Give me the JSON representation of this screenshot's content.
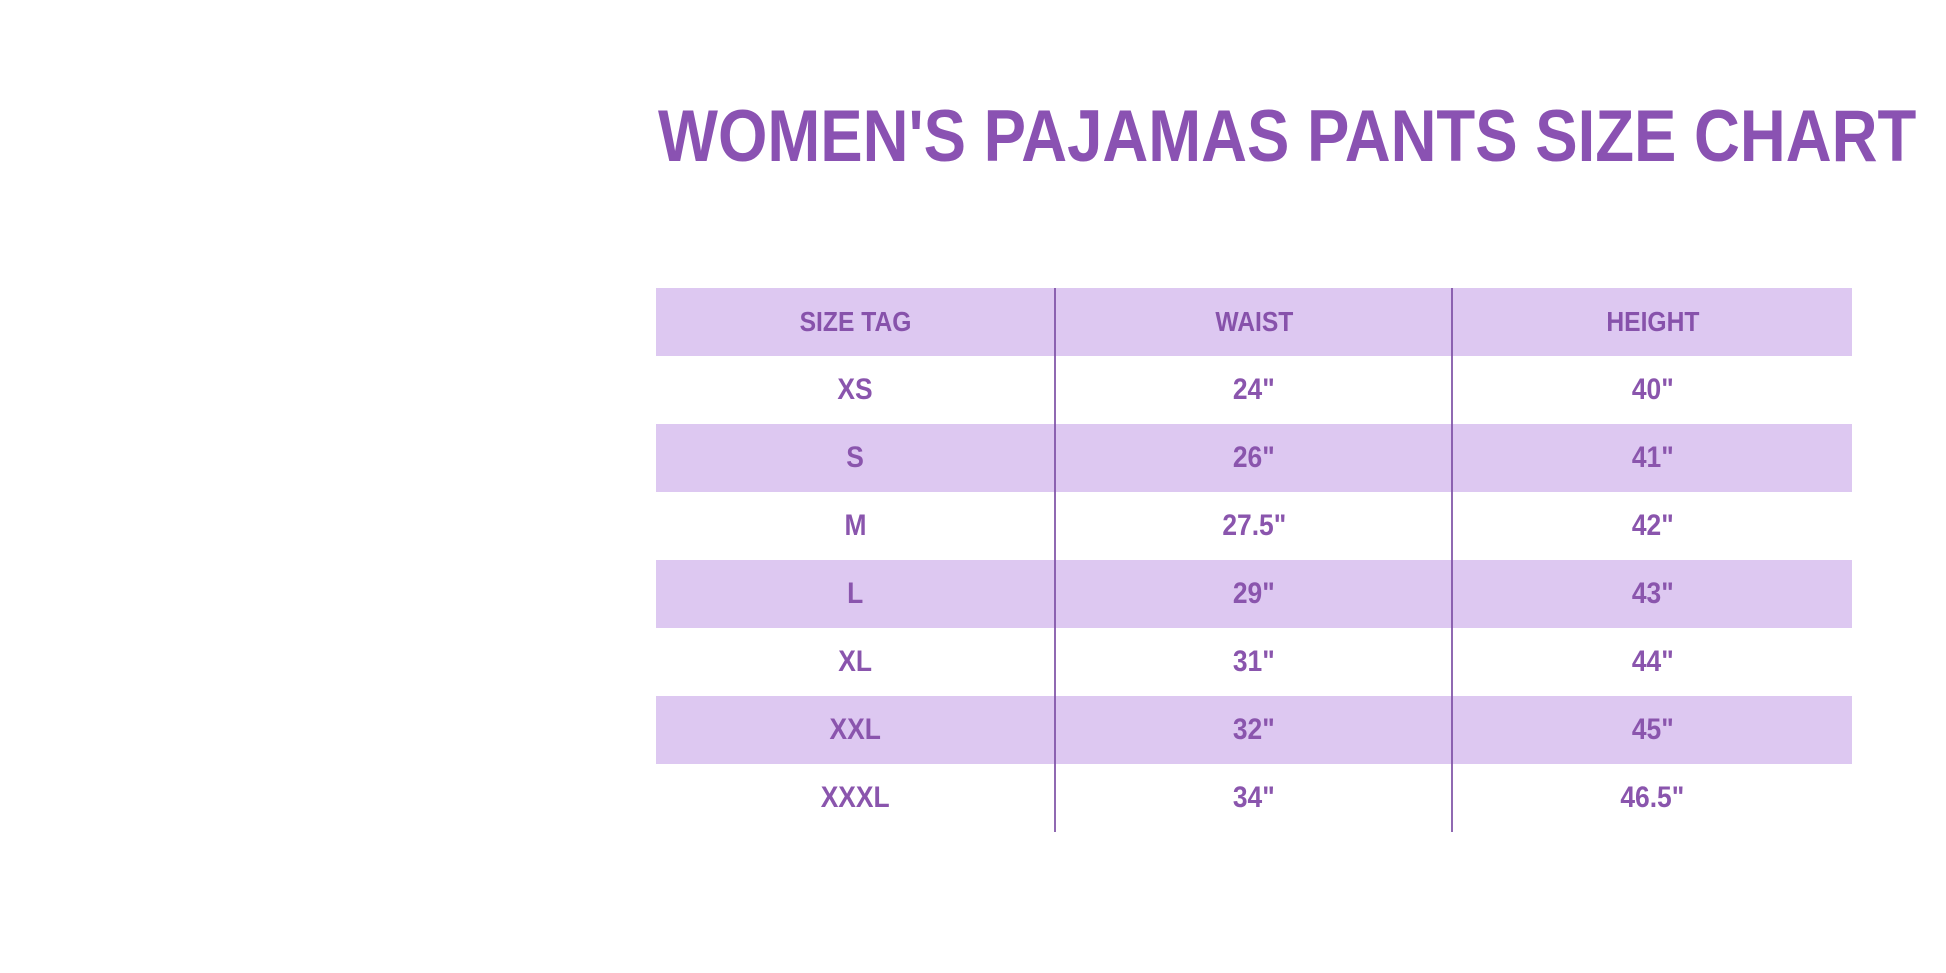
{
  "title": "WOMEN'S PAJAMAS PANTS SIZE CHART",
  "colors": {
    "background": "#ffffff",
    "title_text": "#8a52b2",
    "stripe_purple": "#ddc8f1",
    "cell_text": "#8a55ad",
    "column_divider": "#7d4fa5"
  },
  "chart_data": {
    "type": "table",
    "title": "WOMEN'S PAJAMAS PANTS SIZE CHART",
    "columns": [
      "SIZE TAG",
      "WAIST",
      "HEIGHT"
    ],
    "rows": [
      {
        "size_tag": "XS",
        "waist": "24\"",
        "height": "40\""
      },
      {
        "size_tag": "S",
        "waist": "26\"",
        "height": "41\""
      },
      {
        "size_tag": "M",
        "waist": "27.5\"",
        "height": "42\""
      },
      {
        "size_tag": "L",
        "waist": "29\"",
        "height": "43\""
      },
      {
        "size_tag": "XL",
        "waist": "31\"",
        "height": "44\""
      },
      {
        "size_tag": "XXL",
        "waist": "32\"",
        "height": "45\""
      },
      {
        "size_tag": "XXXL",
        "waist": "34\"",
        "height": "46.5\""
      }
    ],
    "layout": {
      "striped": true,
      "header_background": "#ddc8f1",
      "stripe_pattern": "header and odd data rows lavender, others white",
      "outer_border": false,
      "internal_vertical_dividers": 2
    }
  }
}
